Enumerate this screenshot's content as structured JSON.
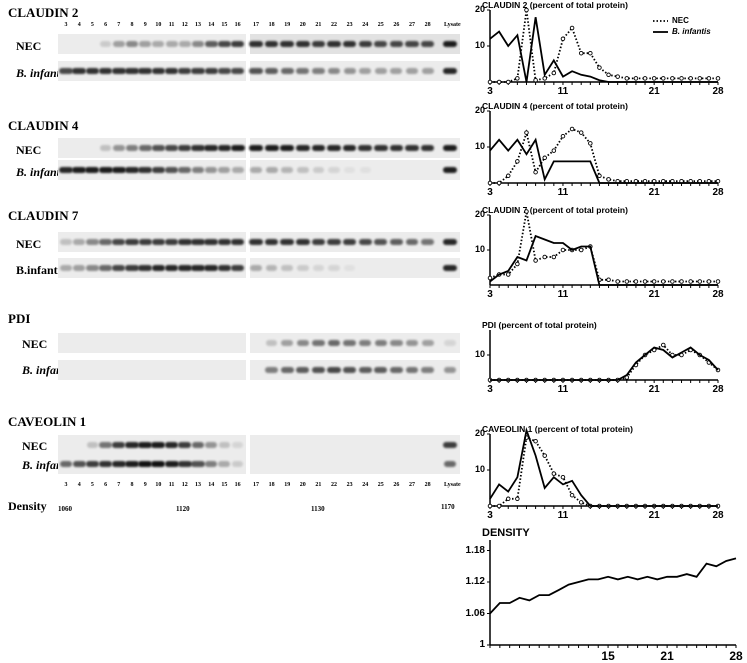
{
  "blots": [
    {
      "title": "CLAUDIN 2",
      "rows": [
        {
          "label": "NEC",
          "italic": false,
          "intensity": [
            0,
            0,
            0,
            0.15,
            0.35,
            0.45,
            0.35,
            0.3,
            0.3,
            0.3,
            0.45,
            0.65,
            0.75,
            0.8,
            0.85,
            0.85,
            0.85,
            0.85,
            0.8,
            0.85,
            0.85,
            0.8,
            0.75,
            0.75,
            0.75,
            0.75,
            0.95
          ]
        },
        {
          "label": "B. infantis",
          "italic": true,
          "intensity": [
            0.75,
            0.85,
            0.85,
            0.85,
            0.85,
            0.85,
            0.85,
            0.85,
            0.85,
            0.8,
            0.8,
            0.8,
            0.75,
            0.75,
            0.7,
            0.65,
            0.6,
            0.55,
            0.5,
            0.45,
            0.4,
            0.35,
            0.35,
            0.35,
            0.35,
            0.35,
            0.9
          ]
        }
      ]
    },
    {
      "title": "CLAUDIN 4",
      "rows": [
        {
          "label": "NEC",
          "italic": false,
          "intensity": [
            0,
            0,
            0,
            0.2,
            0.4,
            0.5,
            0.6,
            0.7,
            0.75,
            0.8,
            0.85,
            0.9,
            0.9,
            0.95,
            0.95,
            0.95,
            0.95,
            0.9,
            0.9,
            0.9,
            0.9,
            0.85,
            0.85,
            0.85,
            0.85,
            0.85,
            0.95
          ]
        },
        {
          "label": "B. infantis",
          "italic": true,
          "intensity": [
            0.9,
            0.95,
            0.95,
            0.95,
            0.95,
            0.9,
            0.85,
            0.8,
            0.7,
            0.6,
            0.5,
            0.4,
            0.35,
            0.3,
            0.3,
            0.3,
            0.25,
            0.2,
            0.15,
            0.1,
            0.05,
            0.05,
            0,
            0,
            0,
            0,
            0.95
          ]
        }
      ]
    },
    {
      "title": "CLAUDIN 7",
      "rows": [
        {
          "label": "NEC",
          "italic": false,
          "intensity": [
            0.2,
            0.3,
            0.45,
            0.6,
            0.75,
            0.8,
            0.8,
            0.8,
            0.8,
            0.85,
            0.85,
            0.85,
            0.85,
            0.85,
            0.85,
            0.85,
            0.85,
            0.85,
            0.8,
            0.8,
            0.8,
            0.75,
            0.7,
            0.65,
            0.6,
            0.55,
            0.9
          ]
        },
        {
          "label": "B.infantis",
          "italic": false,
          "intensity": [
            0.3,
            0.35,
            0.45,
            0.6,
            0.75,
            0.8,
            0.85,
            0.9,
            0.9,
            0.9,
            0.9,
            0.9,
            0.85,
            0.8,
            0.3,
            0.25,
            0.2,
            0.15,
            0.1,
            0.1,
            0.05,
            0,
            0,
            0,
            0,
            0,
            0.9
          ]
        }
      ]
    },
    {
      "title": "PDI",
      "rows": [
        {
          "label": "NEC",
          "italic": false,
          "intensity": [
            0,
            0,
            0,
            0,
            0,
            0,
            0,
            0,
            0,
            0,
            0,
            0,
            0,
            0,
            0,
            0.2,
            0.35,
            0.45,
            0.55,
            0.6,
            0.55,
            0.5,
            0.5,
            0.45,
            0.4,
            0.35,
            0.1
          ]
        },
        {
          "label": "B. infantis",
          "italic": true,
          "intensity": [
            0,
            0,
            0,
            0,
            0,
            0,
            0,
            0,
            0,
            0,
            0,
            0,
            0,
            0,
            0,
            0.5,
            0.6,
            0.65,
            0.7,
            0.75,
            0.7,
            0.65,
            0.65,
            0.6,
            0.55,
            0.5,
            0.4
          ]
        }
      ]
    },
    {
      "title": "CAVEOLIN 1",
      "rows": [
        {
          "label": "NEC",
          "italic": false,
          "intensity": [
            0,
            0,
            0.2,
            0.55,
            0.8,
            0.9,
            0.95,
            0.95,
            0.9,
            0.8,
            0.6,
            0.4,
            0.2,
            0.1,
            0,
            0,
            0,
            0,
            0,
            0,
            0,
            0,
            0,
            0,
            0,
            0,
            0.8
          ]
        },
        {
          "label": "B. infantis",
          "italic": true,
          "intensity": [
            0.6,
            0.7,
            0.8,
            0.85,
            0.9,
            0.95,
            1.0,
            1.0,
            0.95,
            0.85,
            0.7,
            0.5,
            0.3,
            0.15,
            0,
            0,
            0,
            0,
            0,
            0,
            0,
            0,
            0,
            0,
            0,
            0,
            0.6
          ]
        }
      ]
    }
  ],
  "lane_numbers": [
    "3",
    "4",
    "5",
    "6",
    "7",
    "8",
    "9",
    "10",
    "11",
    "12",
    "13",
    "14",
    "15",
    "16",
    "17",
    "18",
    "19",
    "20",
    "21",
    "22",
    "23",
    "24",
    "25",
    "26",
    "27",
    "28"
  ],
  "lysate_label": "Lysate",
  "density": {
    "label": "Density",
    "values": [
      "1060",
      "1120",
      "1130",
      "1170"
    ]
  },
  "legend": {
    "nec": "NEC",
    "binf": "B. infantis"
  },
  "chart_data": [
    {
      "type": "line",
      "title": "CLAUDIN 2 (percent of total protein)",
      "x": [
        3,
        4,
        5,
        6,
        7,
        8,
        9,
        10,
        11,
        12,
        13,
        14,
        15,
        16,
        17,
        18,
        19,
        20,
        21,
        22,
        23,
        24,
        25,
        26,
        27,
        28
      ],
      "xticks": [
        "3",
        "11",
        "21",
        "28"
      ],
      "xlim": [
        3,
        28
      ],
      "ylim": [
        0,
        20
      ],
      "yticks": [
        "10",
        "20"
      ],
      "series": [
        {
          "name": "NEC",
          "style": "dotted",
          "values": [
            0,
            0,
            0,
            1,
            20,
            0.5,
            1,
            2.5,
            12,
            15,
            8,
            8,
            4,
            2,
            1.5,
            1,
            1,
            1,
            1,
            1,
            1,
            1,
            1,
            1,
            1,
            1
          ]
        },
        {
          "name": "B. infantis",
          "style": "solid",
          "values": [
            12,
            14,
            10,
            13,
            0,
            18,
            2,
            6,
            1.5,
            3,
            2,
            1.5,
            0.5,
            0,
            0,
            0,
            0,
            0,
            0,
            0,
            0,
            0,
            0,
            0,
            0,
            0
          ]
        }
      ]
    },
    {
      "type": "line",
      "title": "CLAUDIN 4 (percent of total protein)",
      "x": [
        3,
        4,
        5,
        6,
        7,
        8,
        9,
        10,
        11,
        12,
        13,
        14,
        15,
        16,
        17,
        18,
        19,
        20,
        21,
        22,
        23,
        24,
        25,
        26,
        27,
        28
      ],
      "xticks": [
        "3",
        "11",
        "21",
        "28"
      ],
      "xlim": [
        3,
        28
      ],
      "ylim": [
        0,
        20
      ],
      "yticks": [
        "10",
        "20"
      ],
      "series": [
        {
          "name": "NEC",
          "style": "dotted",
          "values": [
            0,
            0,
            2,
            6,
            14,
            3,
            7,
            9,
            13,
            15,
            14,
            11,
            2,
            1,
            0.5,
            0.5,
            0.5,
            0.5,
            0.5,
            0.5,
            0.5,
            0.5,
            0.5,
            0.5,
            0.5,
            0.5
          ]
        },
        {
          "name": "B. infantis",
          "style": "solid",
          "values": [
            9,
            12,
            9,
            12,
            8,
            12,
            1,
            6,
            6,
            6,
            6,
            6,
            0,
            0,
            0,
            0,
            0,
            0,
            0,
            0,
            0,
            0,
            0,
            0,
            0,
            0
          ]
        }
      ]
    },
    {
      "type": "line",
      "title": "CLAUDIN 7 (percent of total protein)",
      "x": [
        3,
        4,
        5,
        6,
        7,
        8,
        9,
        10,
        11,
        12,
        13,
        14,
        15,
        16,
        17,
        18,
        19,
        20,
        21,
        22,
        23,
        24,
        25,
        26,
        27,
        28
      ],
      "xticks": [
        "3",
        "11",
        "21",
        "28"
      ],
      "xlim": [
        3,
        28
      ],
      "ylim": [
        0,
        20
      ],
      "yticks": [
        "10",
        "20"
      ],
      "series": [
        {
          "name": "NEC",
          "style": "dotted",
          "values": [
            2,
            3,
            3,
            6,
            21,
            7,
            8,
            8,
            10,
            10,
            10,
            11,
            1.5,
            1.5,
            1,
            1,
            1,
            1,
            1,
            1,
            1,
            1,
            1,
            1,
            1,
            1
          ]
        },
        {
          "name": "B. infantis",
          "style": "solid",
          "values": [
            1,
            3,
            4,
            8,
            7,
            14,
            13,
            12,
            12,
            10,
            11,
            11,
            0,
            0,
            0,
            0,
            0,
            0,
            0,
            0,
            0,
            0,
            0,
            0,
            0,
            0
          ]
        }
      ]
    },
    {
      "type": "line",
      "title": "PDI (percent of total protein)",
      "x": [
        3,
        4,
        5,
        6,
        7,
        8,
        9,
        10,
        11,
        12,
        13,
        14,
        15,
        16,
        17,
        18,
        19,
        20,
        21,
        22,
        23,
        24,
        25,
        26,
        27,
        28
      ],
      "xticks": [
        "3",
        "11",
        "21",
        "28"
      ],
      "xlim": [
        3,
        28
      ],
      "ylim": [
        0,
        20
      ],
      "yticks": [
        "10"
      ],
      "series": [
        {
          "name": "NEC",
          "style": "dotted",
          "values": [
            0,
            0,
            0,
            0,
            0,
            0,
            0,
            0,
            0,
            0,
            0,
            0,
            0,
            0,
            0,
            1,
            6,
            10,
            12,
            14,
            10,
            10,
            12,
            10,
            7,
            4
          ]
        },
        {
          "name": "B. infantis",
          "style": "solid",
          "values": [
            0,
            0,
            0,
            0,
            0,
            0,
            0,
            0,
            0,
            0,
            0,
            0,
            0,
            0,
            0,
            2,
            7,
            10,
            13,
            12,
            9,
            11,
            13,
            10,
            8,
            4
          ]
        }
      ]
    },
    {
      "type": "line",
      "title": "CAVEOLIN 1 (percent of total protein)",
      "x": [
        3,
        4,
        5,
        6,
        7,
        8,
        9,
        10,
        11,
        12,
        13,
        14,
        15,
        16,
        17,
        18,
        19,
        20,
        21,
        22,
        23,
        24,
        25,
        26,
        27,
        28
      ],
      "xticks": [
        "3",
        "11",
        "21",
        "28"
      ],
      "xlim": [
        3,
        28
      ],
      "ylim": [
        0,
        20
      ],
      "yticks": [
        "10",
        "20"
      ],
      "series": [
        {
          "name": "NEC",
          "style": "dotted",
          "values": [
            0,
            0,
            2,
            2,
            19,
            18,
            14,
            9,
            8,
            3,
            1,
            0,
            0,
            0,
            0,
            0,
            0,
            0,
            0,
            0,
            0,
            0,
            0,
            0,
            0,
            0
          ]
        },
        {
          "name": "B. infantis",
          "style": "solid",
          "values": [
            2,
            6,
            4,
            8,
            21,
            14,
            5,
            8,
            6,
            7,
            3,
            0,
            0,
            0,
            0,
            0,
            0,
            0,
            0,
            0,
            0,
            0,
            0,
            0,
            0,
            0
          ]
        }
      ]
    },
    {
      "type": "line",
      "title": "DENSITY",
      "x": [
        3,
        4,
        5,
        6,
        7,
        8,
        9,
        10,
        11,
        12,
        13,
        14,
        15,
        16,
        17,
        18,
        19,
        20,
        21,
        22,
        23,
        24,
        25,
        26,
        27,
        28
      ],
      "xticks": [
        "15",
        "21",
        "28"
      ],
      "xlim": [
        3,
        28
      ],
      "ylim": [
        1.0,
        1.2
      ],
      "yticks": [
        "1",
        "1.06",
        "1.12",
        "1.18"
      ],
      "series": [
        {
          "name": "Density",
          "style": "solid",
          "values": [
            1.06,
            1.08,
            1.08,
            1.09,
            1.085,
            1.095,
            1.095,
            1.105,
            1.115,
            1.12,
            1.125,
            1.125,
            1.13,
            1.125,
            1.13,
            1.125,
            1.13,
            1.125,
            1.13,
            1.13,
            1.135,
            1.13,
            1.155,
            1.15,
            1.16,
            1.165
          ]
        }
      ]
    }
  ]
}
